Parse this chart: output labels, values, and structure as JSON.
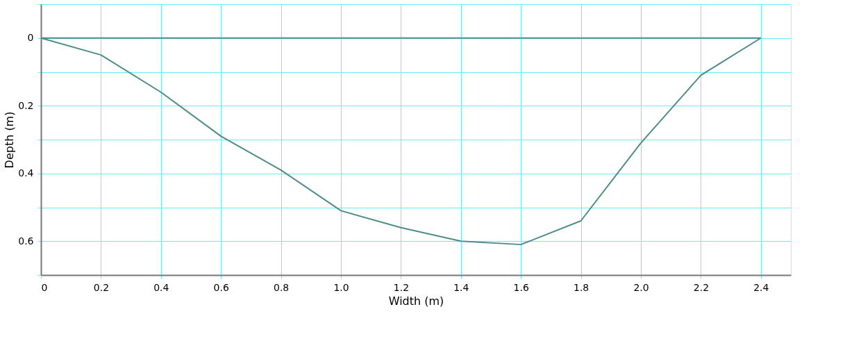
{
  "chart_data": {
    "type": "line",
    "xlabel": "Width (m)",
    "ylabel": "Depth (m)",
    "series": [
      {
        "color": "#4e8c88",
        "x": [
          0,
          0.2,
          0.4,
          0.6,
          0.8,
          1.0,
          1.2,
          1.4,
          1.6,
          1.8,
          2.0,
          2.2,
          2.4
        ],
        "values": [
          0,
          0.05,
          0.16,
          0.29,
          0.39,
          0.51,
          0.56,
          0.6,
          0.61,
          0.54,
          0.31,
          0.11,
          0
        ]
      },
      {
        "color": "#4e8c88",
        "x": [
          0,
          2.4
        ],
        "values": [
          0,
          0
        ]
      }
    ],
    "xlim": [
      0,
      2.5
    ],
    "ylim": [
      0.7,
      -0.1
    ],
    "xticks": [
      0,
      0.2,
      0.4,
      0.6,
      0.8,
      {
        "value": 1.0,
        "label": "1.0"
      },
      1.2,
      1.4,
      1.6,
      1.8,
      {
        "value": 2.0,
        "label": "2.0"
      },
      2.2,
      2.4
    ],
    "yticks": [
      {
        "value": -0.1,
        "label": null
      },
      0,
      {
        "value": 0.1,
        "label": null
      },
      0.2,
      {
        "value": 0.3,
        "label": null
      },
      0.4,
      {
        "value": 0.5,
        "label": null
      },
      0.6,
      {
        "value": 0.7,
        "label": null
      }
    ],
    "grid": true,
    "marker": "none",
    "line_style": "solid"
  }
}
